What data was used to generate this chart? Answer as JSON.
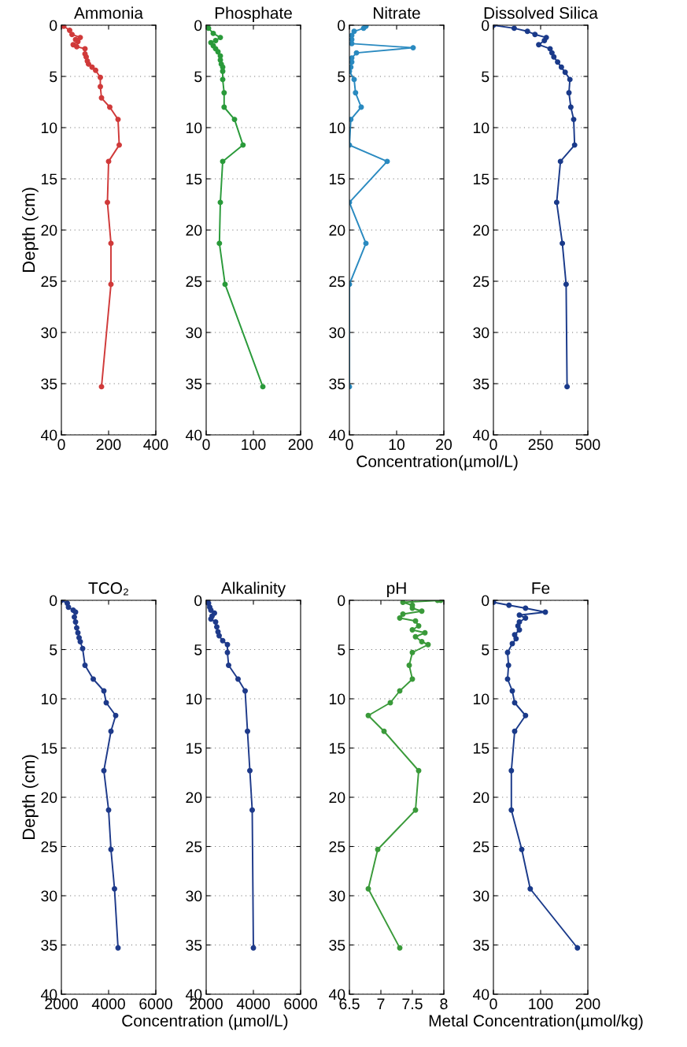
{
  "chart_data": [
    {
      "type": "line",
      "title": "Ammonia",
      "ylabel": "Depth (cm)",
      "color": "#d03a3a",
      "marker": "circle",
      "grid": "y",
      "xlim": [
        0,
        400
      ],
      "xticks": [
        0,
        200,
        400
      ],
      "ylim": [
        40,
        0
      ],
      "yticks": [
        0,
        5,
        10,
        15,
        20,
        25,
        30,
        35,
        40
      ],
      "x": [
        0,
        10,
        35,
        45,
        80,
        60,
        70,
        50,
        65,
        100,
        100,
        105,
        110,
        115,
        130,
        145,
        165,
        165,
        170,
        205,
        240,
        245,
        200,
        195,
        210,
        210,
        170
      ],
      "values": [
        0,
        0.1,
        0.5,
        0.9,
        1.2,
        1.4,
        1.6,
        1.9,
        2.1,
        2.3,
        2.8,
        3.1,
        3.5,
        3.8,
        4.1,
        4.4,
        5.1,
        6.0,
        7.1,
        8.0,
        9.2,
        11.7,
        13.3,
        17.3,
        21.3,
        25.3,
        35.3
      ]
    },
    {
      "type": "line",
      "title": "Phosphate",
      "color": "#2a9a3a",
      "marker": "circle",
      "grid": "y",
      "xlim": [
        0,
        200
      ],
      "xticks": [
        0,
        100,
        200
      ],
      "ylim": [
        40,
        0
      ],
      "yticks": [
        0,
        5,
        10,
        15,
        20,
        25,
        30,
        35,
        40
      ],
      "x": [
        0,
        5,
        15,
        30,
        20,
        10,
        15,
        20,
        25,
        30,
        30,
        32,
        35,
        35,
        35,
        38,
        38,
        60,
        78,
        35,
        30,
        28,
        40,
        120
      ],
      "values": [
        0,
        0.3,
        0.8,
        1.2,
        1.5,
        1.7,
        2.0,
        2.3,
        2.6,
        3.0,
        3.4,
        3.8,
        4.1,
        4.5,
        5.3,
        6.6,
        8.0,
        9.2,
        11.7,
        13.3,
        17.3,
        21.3,
        25.3,
        35.3
      ]
    },
    {
      "type": "line",
      "title": "Nitrate",
      "xlabel": "Concentration(µmol/L)",
      "color": "#2a8ac0",
      "marker": "circle",
      "grid": "y",
      "xlim": [
        0,
        20
      ],
      "xticks": [
        0,
        10,
        20
      ],
      "ylim": [
        40,
        0
      ],
      "yticks": [
        0,
        5,
        10,
        15,
        20,
        25,
        30,
        35,
        40
      ],
      "x": [
        3.5,
        3.5,
        3,
        1,
        0.5,
        0.5,
        0.5,
        13.5,
        1.5,
        0.5,
        0.5,
        0.3,
        0,
        1,
        1.3,
        2.5,
        0.3,
        0,
        8,
        0,
        3.5,
        0,
        0
      ],
      "values": [
        0,
        0.1,
        0.3,
        0.6,
        1,
        1.4,
        1.8,
        2.2,
        2.7,
        3.2,
        3.6,
        4.1,
        4.5,
        5.3,
        6.6,
        8,
        9.2,
        11.7,
        13.3,
        17.3,
        21.3,
        25.3,
        35.3
      ]
    },
    {
      "type": "line",
      "title": "Dissolved Silica",
      "color": "#1a3a8a",
      "marker": "circle",
      "grid": "y",
      "xlim": [
        0,
        500
      ],
      "xticks": [
        0,
        250,
        500
      ],
      "ylim": [
        40,
        0
      ],
      "yticks": [
        0,
        5,
        10,
        15,
        20,
        25,
        30,
        35,
        40
      ],
      "x": [
        0,
        110,
        180,
        220,
        280,
        270,
        240,
        300,
        310,
        320,
        340,
        360,
        380,
        405,
        400,
        410,
        425,
        430,
        355,
        335,
        365,
        385,
        390
      ],
      "values": [
        0,
        0.3,
        0.6,
        0.9,
        1.2,
        1.5,
        1.9,
        2.3,
        2.7,
        3.1,
        3.6,
        4.1,
        4.6,
        5.3,
        6.6,
        8.0,
        9.2,
        11.7,
        13.3,
        17.3,
        21.3,
        25.3,
        35.3
      ]
    },
    {
      "type": "line",
      "title": "TCO₂",
      "ylabel": "Depth (cm)",
      "xlabel": "Concentration (µmol/L)",
      "color": "#1e3a8a",
      "marker": "circle",
      "grid": "y",
      "xlim": [
        2000,
        6000
      ],
      "xticks": [
        2000,
        4000,
        6000
      ],
      "ylim": [
        40,
        0
      ],
      "yticks": [
        0,
        5,
        10,
        15,
        20,
        25,
        30,
        35,
        40
      ],
      "x": [
        2000,
        2250,
        2300,
        2500,
        2600,
        2550,
        2600,
        2650,
        2700,
        2750,
        2800,
        2900,
        3000,
        3350,
        3800,
        3900,
        4300,
        4100,
        3800,
        4000,
        4100,
        4250,
        4400
      ],
      "values": [
        0,
        0.3,
        0.7,
        1.0,
        1.2,
        1.7,
        2.2,
        2.8,
        3.3,
        3.8,
        4.2,
        4.9,
        6.6,
        8.0,
        9.2,
        10.4,
        11.7,
        13.3,
        17.3,
        21.3,
        25.3,
        29.3,
        35.3
      ]
    },
    {
      "type": "line",
      "title": "Alkalinity",
      "color": "#1e3a8a",
      "marker": "circle",
      "grid": "y",
      "xlim": [
        2000,
        6000
      ],
      "xticks": [
        2000,
        4000,
        6000
      ],
      "ylim": [
        40,
        0
      ],
      "yticks": [
        0,
        5,
        10,
        15,
        20,
        25,
        30,
        35,
        40
      ],
      "x": [
        2050,
        2100,
        2150,
        2200,
        2350,
        2250,
        2200,
        2400,
        2450,
        2500,
        2550,
        2700,
        2900,
        2900,
        2950,
        3350,
        3650,
        3750,
        3850,
        3950,
        4000
      ],
      "values": [
        0,
        0.3,
        0.7,
        1.0,
        1.3,
        1.6,
        1.9,
        2.2,
        2.7,
        3.2,
        3.6,
        4.1,
        4.5,
        5.3,
        6.6,
        8.0,
        9.2,
        13.3,
        17.3,
        21.3,
        35.3
      ]
    },
    {
      "type": "line",
      "title": "pH",
      "color": "#3a9a3a",
      "marker": "circle",
      "grid": "y",
      "xlim": [
        6.5,
        8
      ],
      "xticks": [
        6.5,
        7,
        7.5,
        8
      ],
      "ylim": [
        40,
        0
      ],
      "yticks": [
        0,
        5,
        10,
        15,
        20,
        25,
        30,
        35,
        40
      ],
      "x": [
        7.9,
        7.95,
        7.35,
        7.5,
        7.5,
        7.65,
        7.35,
        7.3,
        7.55,
        7.6,
        7.5,
        7.7,
        7.55,
        7.65,
        7.75,
        7.5,
        7.45,
        7.5,
        7.3,
        7.15,
        6.8,
        7.05,
        7.6,
        7.55,
        6.95,
        6.8,
        7.3
      ],
      "values": [
        0,
        0,
        0.2,
        0.5,
        0.8,
        1.1,
        1.4,
        1.8,
        2.1,
        2.6,
        3.0,
        3.3,
        3.7,
        4.2,
        4.5,
        5.3,
        6.6,
        8.0,
        9.2,
        10.4,
        11.7,
        13.3,
        17.3,
        21.3,
        25.3,
        29.3,
        35.3
      ]
    },
    {
      "type": "line",
      "title": "Fe",
      "xlabel": "Metal Concentration(µmol/kg)",
      "color": "#1a3a8a",
      "marker": "circle",
      "grid": "y",
      "xlim": [
        0,
        200
      ],
      "xticks": [
        0,
        100,
        200
      ],
      "ylim": [
        40,
        0
      ],
      "yticks": [
        0,
        5,
        10,
        15,
        20,
        25,
        30,
        35,
        40
      ],
      "x": [
        0,
        0,
        33,
        68,
        110,
        55,
        68,
        55,
        52,
        55,
        45,
        48,
        40,
        30,
        32,
        30,
        40,
        45,
        68,
        45,
        38,
        38,
        60,
        78,
        178
      ],
      "values": [
        0,
        0.2,
        0.5,
        0.8,
        1.2,
        1.5,
        1.8,
        2.2,
        2.6,
        3.0,
        3.5,
        3.9,
        4.4,
        5.3,
        6.6,
        8.0,
        9.2,
        10.4,
        11.7,
        13.3,
        17.3,
        21.3,
        25.3,
        29.3,
        35.3
      ]
    }
  ]
}
